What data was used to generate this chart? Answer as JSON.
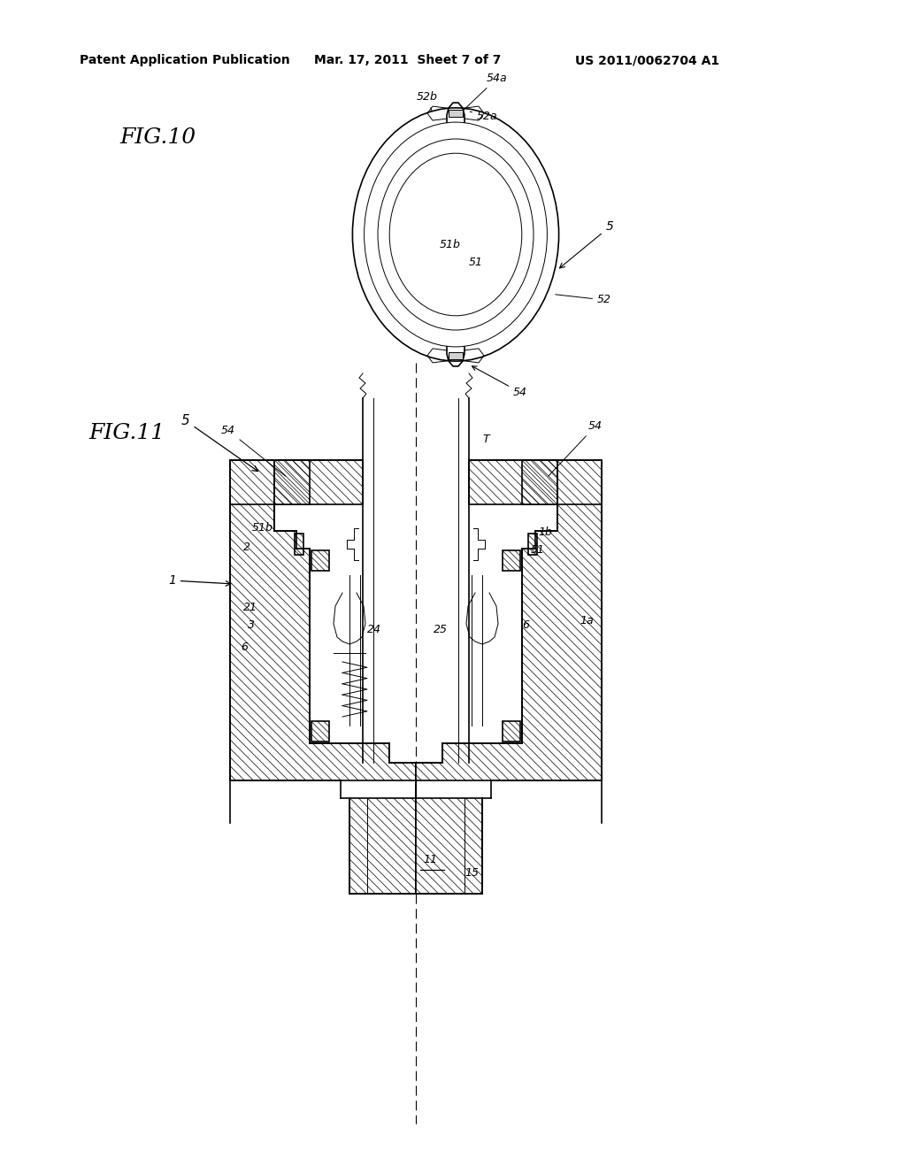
{
  "bg_color": "#ffffff",
  "line_color": "#000000",
  "fig10_label": "FIG.10",
  "fig11_label": "FIG.11",
  "header_text1": "Patent Application Publication",
  "header_text2": "Mar. 17, 2011  Sheet 7 of 7",
  "header_text3": "US 2011/0062704 A1",
  "annotation_fontsize": 9,
  "label_fontsize": 10
}
